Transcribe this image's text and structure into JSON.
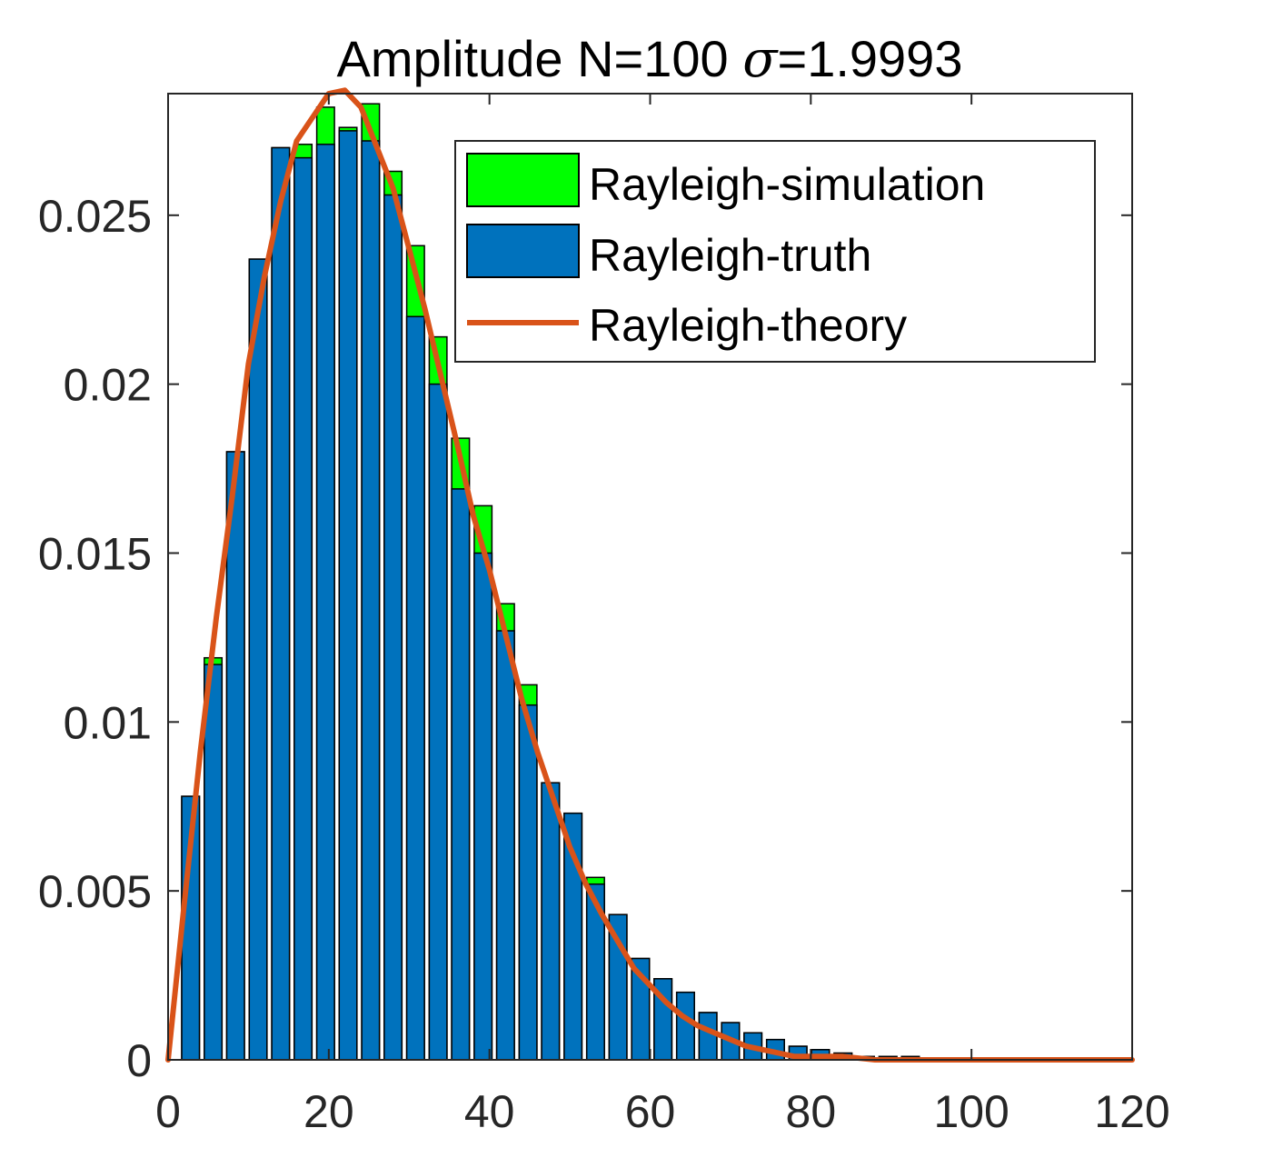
{
  "chart_data": {
    "type": "bar",
    "title_parts": [
      "Amplitude N=100 ",
      "σ",
      "=1.9993"
    ],
    "xlabel": "",
    "ylabel": "",
    "xlim": [
      0,
      120
    ],
    "ylim": [
      0,
      0.0286
    ],
    "x_ticks": [
      0,
      20,
      40,
      60,
      80,
      100,
      120
    ],
    "x_tick_labels": [
      "0",
      "20",
      "40",
      "60",
      "80",
      "100",
      "120"
    ],
    "y_ticks": [
      0,
      0.005,
      0.01,
      0.015,
      0.02,
      0.025
    ],
    "y_tick_labels": [
      "0",
      "0.005",
      "0.01",
      "0.015",
      "0.02",
      "0.025"
    ],
    "grid": false,
    "legend_position": "top-right",
    "bar_centers": [
      2.8,
      5.6,
      8.4,
      11.2,
      14.0,
      16.8,
      19.6,
      22.4,
      25.2,
      28.0,
      30.8,
      33.6,
      36.4,
      39.2,
      42.0,
      44.8,
      47.6,
      50.4,
      53.2,
      56.0,
      58.8,
      61.6,
      64.4,
      67.2,
      70.0,
      72.8,
      75.6,
      78.4,
      81.2,
      84.0,
      86.8,
      89.6,
      92.4
    ],
    "bar_width": 2.2,
    "series": [
      {
        "name": "Rayleigh-simulation",
        "color": "#00ff00",
        "values": [
          0.0078,
          0.0119,
          0.018,
          0.0237,
          0.027,
          0.0271,
          0.0282,
          0.0276,
          0.0283,
          0.0263,
          0.0241,
          0.0214,
          0.0184,
          0.0164,
          0.0135,
          0.0111,
          0.0082,
          0.0073,
          0.0054,
          0.0043,
          0.003,
          0.0024,
          0.002,
          0.0014,
          0.0011,
          0.0008,
          0.0006,
          0.0004,
          0.0003,
          0.0002,
          0.0001,
          0.0001,
          0.0001
        ]
      },
      {
        "name": "Rayleigh-truth",
        "color": "#0072bd",
        "values": [
          0.0078,
          0.0117,
          0.018,
          0.0237,
          0.027,
          0.0267,
          0.0271,
          0.0275,
          0.0272,
          0.0256,
          0.022,
          0.02,
          0.0169,
          0.015,
          0.0127,
          0.0105,
          0.0082,
          0.0073,
          0.0052,
          0.0043,
          0.003,
          0.0024,
          0.002,
          0.0014,
          0.0011,
          0.0008,
          0.0006,
          0.0004,
          0.0003,
          0.0002,
          0.0001,
          0.0001,
          0.0001
        ]
      }
    ],
    "line": {
      "name": "Rayleigh-theory",
      "color": "#d95319",
      "x": [
        0,
        2,
        4,
        6,
        8,
        10,
        12,
        14,
        16,
        18,
        20,
        22,
        24,
        26,
        28,
        30,
        32,
        34,
        36,
        38,
        40,
        42,
        44,
        46,
        48,
        50,
        52,
        54,
        56,
        58,
        60,
        62,
        64,
        66,
        68,
        70,
        72,
        74,
        76,
        78,
        80,
        84,
        88,
        92,
        96,
        100,
        105,
        110,
        115,
        120
      ],
      "y": [
        0,
        0.0046,
        0.0091,
        0.0131,
        0.0167,
        0.0206,
        0.0232,
        0.0254,
        0.0272,
        0.0279,
        0.0286,
        0.0287,
        0.0282,
        0.027,
        0.0258,
        0.024,
        0.0222,
        0.0202,
        0.0182,
        0.0161,
        0.0145,
        0.0126,
        0.0107,
        0.0091,
        0.0077,
        0.0063,
        0.0052,
        0.0043,
        0.0035,
        0.0027,
        0.0022,
        0.0017,
        0.0013,
        0.001,
        0.0008,
        0.0006,
        0.0004,
        0.0003,
        0.0002,
        0.0001,
        0.0001,
        0.0001,
        0.0,
        0.0,
        0.0,
        0.0,
        0.0,
        0.0,
        0.0,
        0.0
      ]
    },
    "legend_entries": [
      "Rayleigh-simulation",
      "Rayleigh-truth",
      "Rayleigh-theory"
    ]
  }
}
